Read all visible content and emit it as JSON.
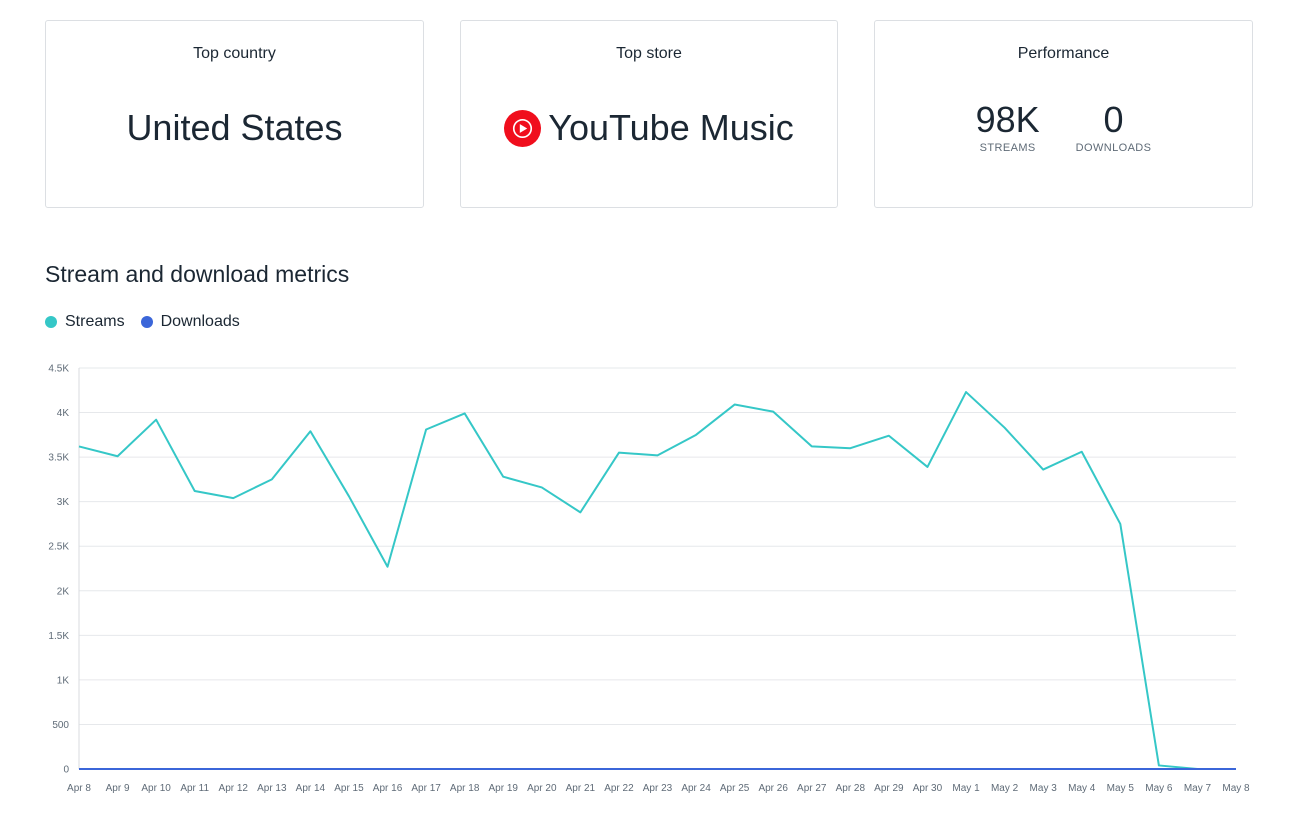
{
  "cards": {
    "top_country": {
      "title": "Top country",
      "value": "United States"
    },
    "top_store": {
      "title": "Top store",
      "value": "YouTube Music",
      "icon": "youtube-music-icon",
      "icon_color": "#f00e1d"
    },
    "performance": {
      "title": "Performance",
      "streams_value": "98K",
      "streams_label": "STREAMS",
      "downloads_value": "0",
      "downloads_label": "DOWNLOADS"
    }
  },
  "section_title": "Stream and download metrics",
  "legend": [
    {
      "label": "Streams",
      "color": "#35c7c7"
    },
    {
      "label": "Downloads",
      "color": "#3b66d9"
    }
  ],
  "chart_data": {
    "type": "line",
    "title": "",
    "xlabel": "",
    "ylabel": "",
    "ylim": [
      0,
      4500
    ],
    "yticks": [
      0,
      500,
      1000,
      1500,
      2000,
      2500,
      3000,
      3500,
      4000,
      4500
    ],
    "ytick_labels": [
      "0",
      "500",
      "1K",
      "1.5K",
      "2K",
      "2.5K",
      "3K",
      "3.5K",
      "4K",
      "4.5K"
    ],
    "grid": true,
    "legend_position": "top-left",
    "categories": [
      "Apr 8",
      "Apr 9",
      "Apr 10",
      "Apr 11",
      "Apr 12",
      "Apr 13",
      "Apr 14",
      "Apr 15",
      "Apr 16",
      "Apr 17",
      "Apr 18",
      "Apr 19",
      "Apr 20",
      "Apr 21",
      "Apr 22",
      "Apr 23",
      "Apr 24",
      "Apr 25",
      "Apr 26",
      "Apr 27",
      "Apr 28",
      "Apr 29",
      "Apr 30",
      "May 1",
      "May 2",
      "May 3",
      "May 4",
      "May 5",
      "May 6",
      "May 7",
      "May 8"
    ],
    "series": [
      {
        "name": "Streams",
        "color": "#35c7c7",
        "values": [
          3620,
          3510,
          3920,
          3120,
          3040,
          3250,
          3790,
          3060,
          2270,
          3810,
          3990,
          3280,
          3160,
          2880,
          3550,
          3520,
          3750,
          4090,
          4010,
          3620,
          3600,
          3740,
          3390,
          4230,
          3830,
          3360,
          3560,
          2750,
          40,
          0,
          0
        ]
      },
      {
        "name": "Downloads",
        "color": "#3b66d9",
        "values": [
          0,
          0,
          0,
          0,
          0,
          0,
          0,
          0,
          0,
          0,
          0,
          0,
          0,
          0,
          0,
          0,
          0,
          0,
          0,
          0,
          0,
          0,
          0,
          0,
          0,
          0,
          0,
          0,
          0,
          0,
          0
        ]
      }
    ]
  }
}
